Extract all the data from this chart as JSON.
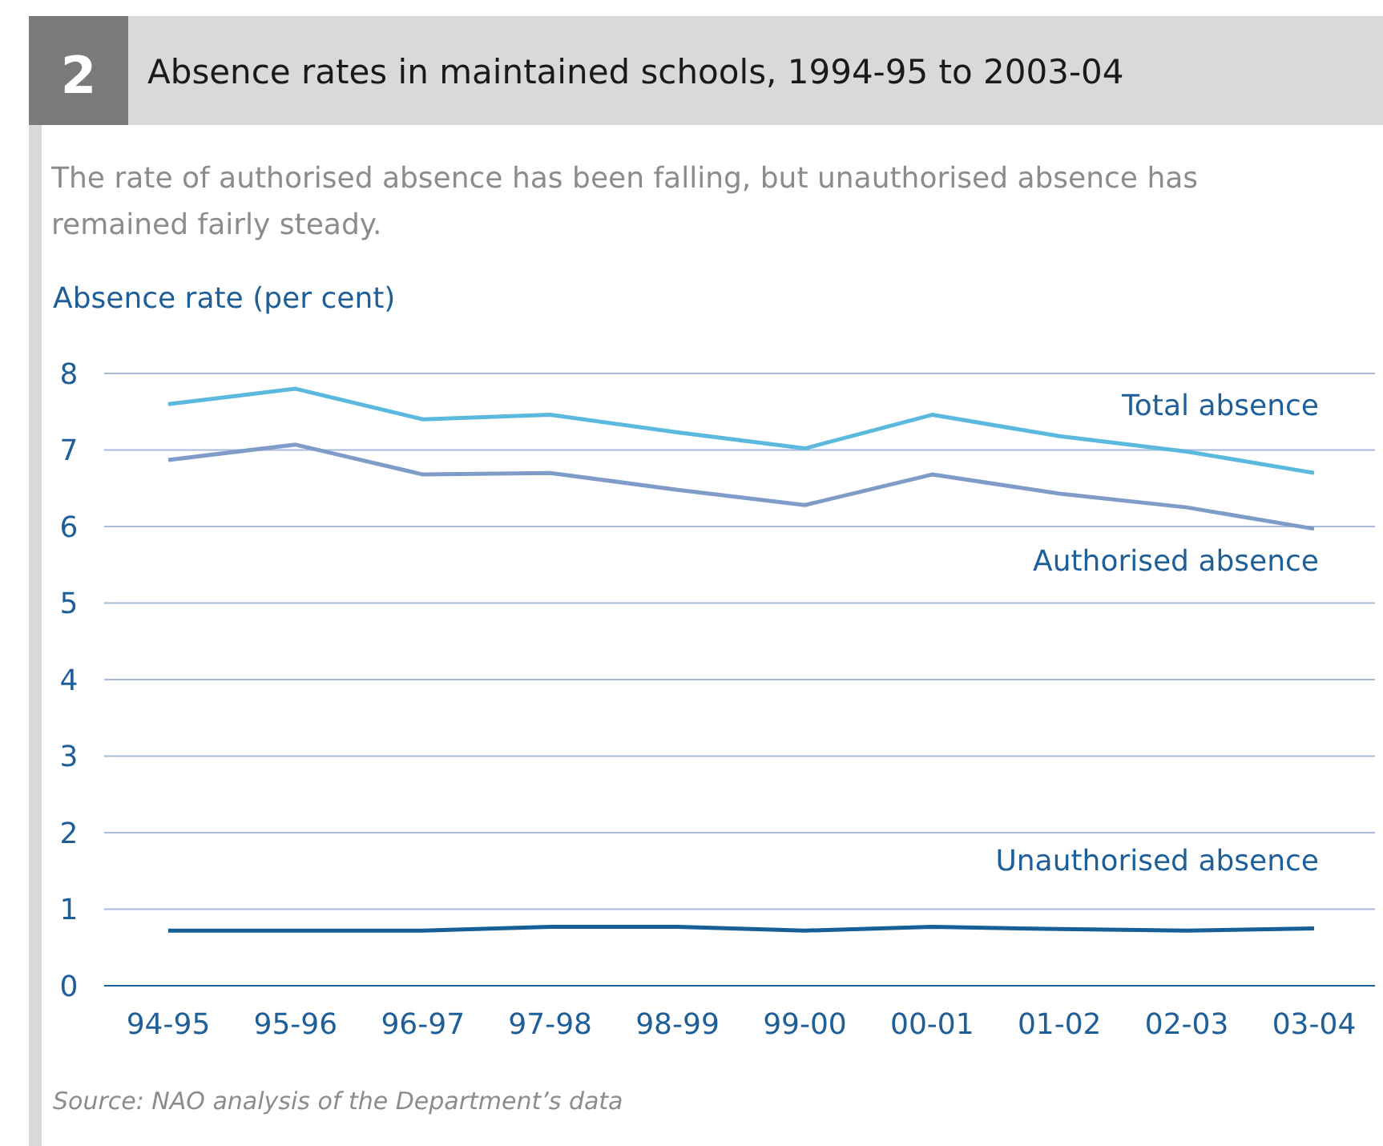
{
  "chart_data": {
    "type": "line",
    "title": "Absence rates in maintained schools, 1994-95 to 2003-04",
    "subtitle": "The rate of authorised absence has been falling, but unauthorised absence has remained fairly steady.",
    "ylabel": "Absence rate (per cent)",
    "annotations": [
      "2",
      "Source: NAO analysis of the Department’s data"
    ],
    "categories": [
      "94-95",
      "95-96",
      "96-97",
      "97-98",
      "98-99",
      "99-00",
      "00-01",
      "01-02",
      "02-03",
      "03-04"
    ],
    "series": [
      {
        "name": "Total absence",
        "color": "#5bb8de",
        "values": [
          7.6,
          7.8,
          7.4,
          7.46,
          7.23,
          7.02,
          7.46,
          7.18,
          6.98,
          6.7
        ]
      },
      {
        "name": "Authorised absence",
        "color": "#7f9cc9",
        "values": [
          6.87,
          7.07,
          6.68,
          6.7,
          6.48,
          6.28,
          6.68,
          6.43,
          6.25,
          5.97
        ]
      },
      {
        "name": "Unauthorised absence",
        "color": "#165f97",
        "values": [
          0.72,
          0.72,
          0.72,
          0.77,
          0.77,
          0.72,
          0.77,
          0.74,
          0.72,
          0.75
        ]
      }
    ],
    "ylim": [
      0,
      8
    ],
    "yticks": [
      0,
      1,
      2,
      3,
      4,
      5,
      6,
      7,
      8
    ],
    "grid": "y",
    "marker": "none",
    "line_style": "solid"
  }
}
